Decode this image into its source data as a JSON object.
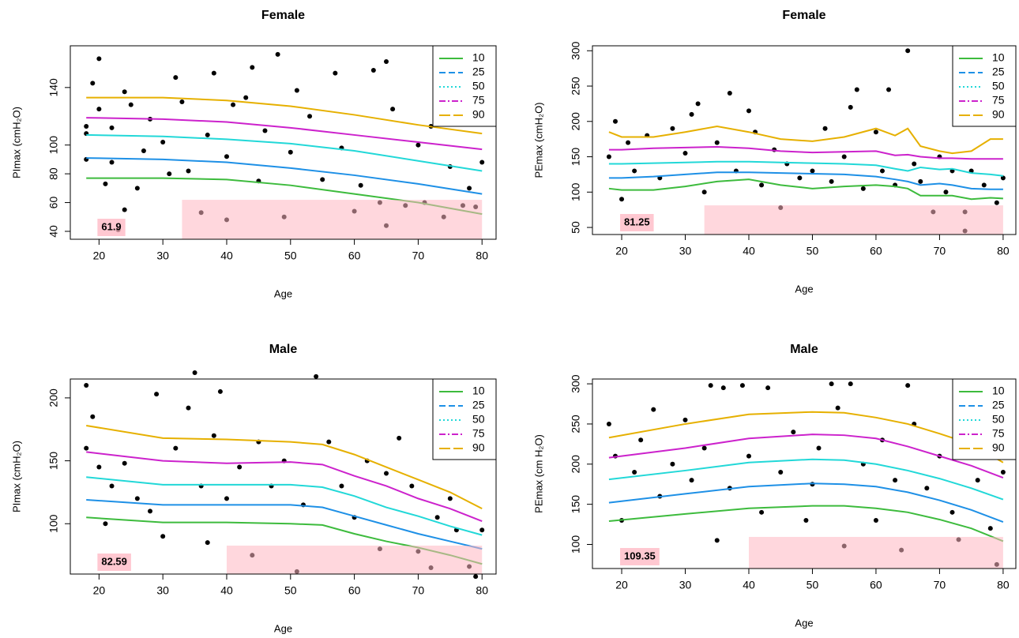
{
  "chart_data": [
    {
      "type": "scatter",
      "title": "Female",
      "xlabel": "Age",
      "ylabel": "PImax (cmH₂O)",
      "xlim": [
        15.5,
        82.2
      ],
      "ylim": [
        34.5,
        169
      ],
      "xticks": [
        20,
        30,
        40,
        50,
        60,
        70,
        80
      ],
      "yticks": [
        40,
        60,
        80,
        100,
        140
      ],
      "legend": "topright",
      "threshold": 61.9,
      "region_x": [
        33,
        80
      ],
      "points": {
        "x": [
          18,
          18,
          18,
          19,
          20,
          20,
          21,
          22,
          22,
          23,
          24,
          24,
          25,
          26,
          27,
          28,
          30,
          31,
          32,
          33,
          34,
          36,
          37,
          38,
          40,
          40,
          41,
          43,
          44,
          45,
          46,
          48,
          49,
          50,
          51,
          53,
          55,
          57,
          58,
          60,
          61,
          63,
          64,
          65,
          65,
          66,
          68,
          70,
          71,
          72,
          74,
          75,
          77,
          78,
          79,
          80
        ],
        "y": [
          113,
          108,
          90,
          143,
          160,
          125,
          73,
          88,
          112,
          41,
          55,
          137,
          128,
          70,
          96,
          118,
          102,
          80,
          147,
          130,
          82,
          53,
          107,
          150,
          48,
          92,
          128,
          133,
          154,
          75,
          110,
          163,
          50,
          95,
          138,
          120,
          76,
          150,
          98,
          54,
          72,
          152,
          60,
          44,
          158,
          125,
          58,
          100,
          60,
          113,
          50,
          85,
          58,
          70,
          57,
          88
        ]
      },
      "curve_x": [
        18,
        30,
        40,
        50,
        60,
        70,
        80
      ],
      "series": [
        {
          "name": "10",
          "color": "#3dbb3d",
          "legend_linestyle": "solid",
          "values": [
            77,
            77,
            76,
            72,
            66,
            60,
            52
          ]
        },
        {
          "name": "25",
          "color": "#1e90e6",
          "legend_linestyle": "dashed",
          "values": [
            91,
            90,
            88,
            84,
            79,
            73,
            66
          ]
        },
        {
          "name": "50",
          "color": "#22d8d8",
          "legend_linestyle": "dotted",
          "values": [
            107,
            106,
            104,
            101,
            96,
            89,
            82
          ]
        },
        {
          "name": "75",
          "color": "#cc22cc",
          "legend_linestyle": "dashdot",
          "values": [
            119,
            118,
            116,
            112,
            107,
            102,
            97
          ]
        },
        {
          "name": "90",
          "color": "#e6b000",
          "legend_linestyle": "longdash",
          "values": [
            133,
            133,
            131,
            127,
            121,
            114,
            108
          ]
        }
      ]
    },
    {
      "type": "scatter",
      "title": "Female",
      "xlabel": "Age",
      "ylabel": "PEmax (cmH₂O)",
      "xlim": [
        15.4,
        82
      ],
      "ylim": [
        40,
        307
      ],
      "xticks": [
        20,
        30,
        40,
        50,
        60,
        70,
        80
      ],
      "yticks": [
        50,
        100,
        150,
        200,
        250,
        300
      ],
      "legend": "topright",
      "threshold": 81.25,
      "region_x": [
        33,
        80
      ],
      "points": {
        "x": [
          18,
          19,
          20,
          21,
          22,
          24,
          26,
          28,
          30,
          31,
          32,
          33,
          35,
          37,
          38,
          40,
          41,
          42,
          44,
          45,
          46,
          48,
          50,
          52,
          53,
          55,
          56,
          57,
          58,
          60,
          61,
          62,
          63,
          65,
          66,
          67,
          69,
          70,
          71,
          72,
          74,
          74,
          75,
          77,
          79,
          80
        ],
        "y": [
          150,
          200,
          90,
          170,
          130,
          180,
          120,
          190,
          155,
          210,
          225,
          100,
          170,
          240,
          130,
          215,
          185,
          110,
          160,
          78,
          140,
          120,
          130,
          190,
          115,
          150,
          220,
          245,
          105,
          185,
          130,
          245,
          110,
          300,
          140,
          115,
          72,
          150,
          100,
          130,
          45,
          72,
          130,
          110,
          85,
          120
        ]
      },
      "curve_x": [
        18,
        20,
        25,
        30,
        35,
        40,
        45,
        50,
        55,
        60,
        63,
        65,
        67,
        70,
        72,
        75,
        78,
        80
      ],
      "series": [
        {
          "name": "10",
          "color": "#3dbb3d",
          "legend_linestyle": "solid",
          "values": [
            105,
            103,
            103,
            108,
            115,
            118,
            110,
            105,
            108,
            110,
            108,
            105,
            95,
            95,
            95,
            90,
            92,
            91
          ]
        },
        {
          "name": "25",
          "color": "#1e90e6",
          "legend_linestyle": "dashed",
          "values": [
            120,
            120,
            122,
            125,
            128,
            128,
            127,
            126,
            125,
            122,
            118,
            115,
            110,
            112,
            110,
            105,
            104,
            104
          ]
        },
        {
          "name": "50",
          "color": "#22d8d8",
          "legend_linestyle": "dotted",
          "values": [
            140,
            140,
            141,
            142,
            143,
            143,
            142,
            141,
            140,
            138,
            133,
            130,
            135,
            132,
            133,
            127,
            125,
            123
          ]
        },
        {
          "name": "75",
          "color": "#cc22cc",
          "legend_linestyle": "dashdot",
          "values": [
            160,
            160,
            162,
            163,
            164,
            162,
            158,
            156,
            157,
            158,
            152,
            153,
            150,
            148,
            148,
            147,
            147,
            147
          ]
        },
        {
          "name": "90",
          "color": "#e6b000",
          "legend_linestyle": "longdash",
          "values": [
            185,
            178,
            178,
            185,
            193,
            185,
            175,
            172,
            178,
            190,
            180,
            190,
            165,
            158,
            155,
            158,
            175,
            175
          ]
        }
      ]
    },
    {
      "type": "scatter",
      "title": "Male",
      "xlabel": "Age",
      "ylabel": "PImax (cmH₂O)",
      "xlim": [
        15.5,
        82.2
      ],
      "ylim": [
        60,
        215
      ],
      "xticks": [
        20,
        30,
        40,
        50,
        60,
        70,
        80
      ],
      "yticks": [
        100,
        150,
        200
      ],
      "legend": "topright",
      "threshold": 82.59,
      "region_x": [
        40,
        80
      ],
      "points": {
        "x": [
          18,
          18,
          19,
          20,
          21,
          22,
          24,
          26,
          28,
          29,
          30,
          32,
          34,
          35,
          36,
          37,
          38,
          39,
          40,
          42,
          44,
          45,
          47,
          49,
          51,
          52,
          54,
          56,
          58,
          60,
          62,
          64,
          65,
          67,
          69,
          70,
          72,
          73,
          75,
          76,
          78,
          79,
          80
        ],
        "y": [
          210,
          160,
          185,
          145,
          100,
          130,
          148,
          120,
          110,
          203,
          90,
          160,
          192,
          220,
          130,
          85,
          170,
          205,
          120,
          145,
          75,
          165,
          130,
          150,
          62,
          115,
          217,
          165,
          130,
          105,
          150,
          80,
          140,
          168,
          130,
          78,
          65,
          105,
          120,
          95,
          66,
          58,
          95
        ]
      },
      "curve_x": [
        18,
        30,
        40,
        50,
        55,
        60,
        65,
        70,
        75,
        80
      ],
      "series": [
        {
          "name": "10",
          "color": "#3dbb3d",
          "legend_linestyle": "solid",
          "values": [
            105,
            101,
            101,
            100,
            99,
            92,
            86,
            81,
            75,
            68
          ]
        },
        {
          "name": "25",
          "color": "#1e90e6",
          "legend_linestyle": "dashed",
          "values": [
            119,
            115,
            115,
            115,
            113,
            106,
            99,
            92,
            86,
            80
          ]
        },
        {
          "name": "50",
          "color": "#22d8d8",
          "legend_linestyle": "dotted",
          "values": [
            137,
            131,
            131,
            131,
            129,
            122,
            113,
            106,
            98,
            91
          ]
        },
        {
          "name": "75",
          "color": "#cc22cc",
          "legend_linestyle": "dashdot",
          "values": [
            157,
            150,
            148,
            149,
            147,
            138,
            130,
            120,
            112,
            102
          ]
        },
        {
          "name": "90",
          "color": "#e6b000",
          "legend_linestyle": "longdash",
          "values": [
            178,
            168,
            167,
            165,
            163,
            155,
            145,
            135,
            125,
            112
          ]
        }
      ]
    },
    {
      "type": "scatter",
      "title": "Male",
      "xlabel": "Age",
      "ylabel": "PEmax (cm H₂O)",
      "xlim": [
        15.4,
        82
      ],
      "ylim": [
        70,
        306
      ],
      "xticks": [
        20,
        30,
        40,
        50,
        60,
        70,
        80
      ],
      "yticks": [
        100,
        150,
        200,
        250,
        300
      ],
      "legend": "topright",
      "threshold": 109.35,
      "region_x": [
        40,
        80
      ],
      "points": {
        "x": [
          18,
          19,
          20,
          22,
          23,
          25,
          26,
          28,
          30,
          31,
          33,
          34,
          35,
          36,
          37,
          39,
          40,
          42,
          43,
          45,
          47,
          49,
          50,
          51,
          53,
          54,
          55,
          56,
          58,
          60,
          61,
          63,
          64,
          65,
          66,
          68,
          70,
          72,
          73,
          74,
          76,
          78,
          79,
          80
        ],
        "y": [
          250,
          210,
          130,
          190,
          230,
          268,
          160,
          200,
          255,
          180,
          220,
          298,
          105,
          295,
          170,
          298,
          210,
          140,
          295,
          190,
          240,
          130,
          175,
          220,
          300,
          270,
          98,
          300,
          200,
          130,
          230,
          180,
          93,
          298,
          250,
          170,
          210,
          140,
          106,
          298,
          180,
          120,
          75,
          190
        ]
      },
      "curve_x": [
        18,
        30,
        40,
        50,
        55,
        60,
        65,
        70,
        75,
        80
      ],
      "series": [
        {
          "name": "10",
          "color": "#3dbb3d",
          "legend_linestyle": "solid",
          "values": [
            129,
            138,
            145,
            148,
            148,
            145,
            140,
            131,
            120,
            104
          ]
        },
        {
          "name": "25",
          "color": "#1e90e6",
          "legend_linestyle": "dashed",
          "values": [
            152,
            163,
            172,
            176,
            175,
            172,
            165,
            155,
            143,
            128
          ]
        },
        {
          "name": "50",
          "color": "#22d8d8",
          "legend_linestyle": "dotted",
          "values": [
            181,
            192,
            202,
            206,
            205,
            200,
            192,
            182,
            170,
            156
          ]
        },
        {
          "name": "75",
          "color": "#cc22cc",
          "legend_linestyle": "dashdot",
          "values": [
            208,
            220,
            232,
            237,
            236,
            232,
            222,
            210,
            198,
            183
          ]
        },
        {
          "name": "90",
          "color": "#e6b000",
          "legend_linestyle": "longdash",
          "values": [
            233,
            250,
            262,
            265,
            264,
            258,
            250,
            238,
            225,
            202
          ]
        }
      ]
    }
  ]
}
